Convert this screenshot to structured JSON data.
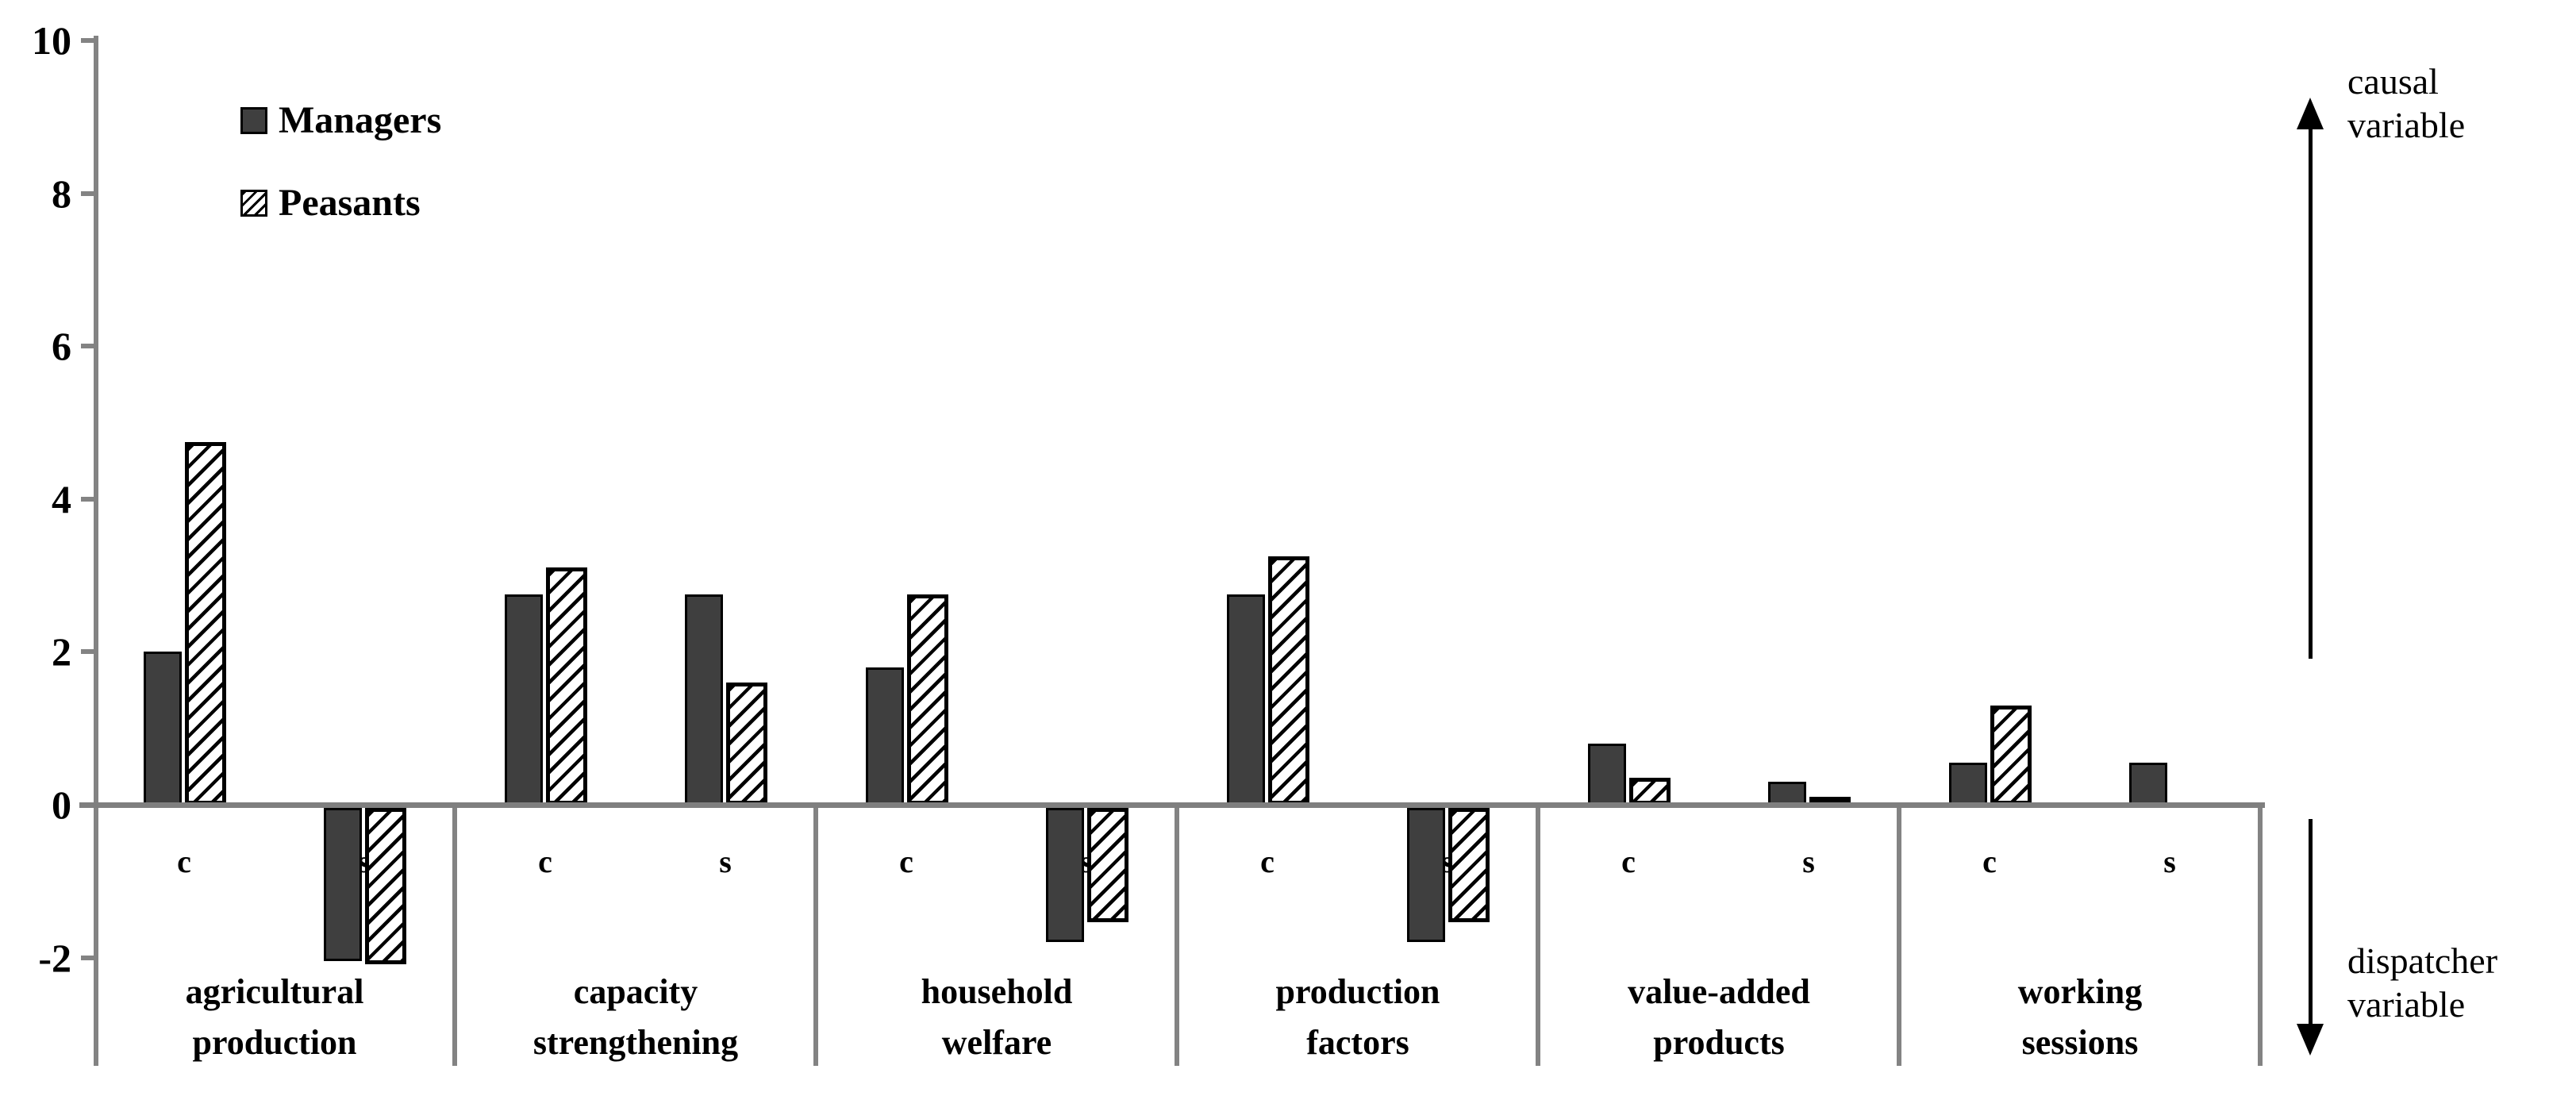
{
  "colors": {
    "managers_fill": "#3f3f3f",
    "peasants_fill": "#ffffff",
    "hatch_line": "#000000",
    "bar_border": "#000000",
    "axis_gray": "#808080",
    "text": "#000000"
  },
  "legend": {
    "items": [
      {
        "label": "Managers",
        "swatch": "solid-dark-square"
      },
      {
        "label": "Peasants",
        "swatch": "diagonal-hatch-square"
      }
    ]
  },
  "annotations": {
    "causal": {
      "lines": [
        "causal",
        "variable"
      ]
    },
    "dispatcher": {
      "lines": [
        "dispatcher",
        "variable"
      ]
    }
  },
  "chart_data": {
    "type": "bar",
    "title": "",
    "xlabel": "",
    "ylabel": "",
    "ylim": [
      -2.8,
      10
    ],
    "grid": false,
    "legend_position": "top-left",
    "series": [
      "Managers",
      "Peasants"
    ],
    "subcategory_labels": [
      "c",
      "s"
    ],
    "yticks": [
      {
        "label": "10",
        "value": 10
      },
      {
        "label": "8",
        "value": 8
      },
      {
        "label": "6",
        "value": 6
      },
      {
        "label": "4",
        "value": 4
      },
      {
        "label": "2",
        "value": 2
      },
      {
        "label": "0",
        "value": 0
      },
      {
        "label": "-2",
        "value": -2
      }
    ],
    "groups": [
      {
        "category": "agricultural production",
        "label_lines": [
          "agricultural",
          "production"
        ],
        "bars": [
          {
            "sub": "c",
            "managers": 2.0,
            "peasants": 4.75
          },
          {
            "sub": "s",
            "managers": -2.0,
            "peasants": -2.05
          }
        ]
      },
      {
        "category": "capacity strengthening",
        "label_lines": [
          "capacity",
          "strengthening"
        ],
        "bars": [
          {
            "sub": "c",
            "managers": 2.75,
            "peasants": 3.1
          },
          {
            "sub": "s",
            "managers": 2.75,
            "peasants": 1.6
          }
        ]
      },
      {
        "category": "household welfare",
        "label_lines": [
          "household",
          "welfare"
        ],
        "bars": [
          {
            "sub": "c",
            "managers": 1.8,
            "peasants": 2.75
          },
          {
            "sub": "s",
            "managers": -1.75,
            "peasants": -1.5
          }
        ]
      },
      {
        "category": "production factors",
        "label_lines": [
          "production",
          "factors"
        ],
        "bars": [
          {
            "sub": "c",
            "managers": 2.75,
            "peasants": 3.25
          },
          {
            "sub": "s",
            "managers": -1.75,
            "peasants": -1.5
          }
        ]
      },
      {
        "category": "value-added products",
        "label_lines": [
          "value-added",
          "products"
        ],
        "bars": [
          {
            "sub": "c",
            "managers": 0.8,
            "peasants": 0.35
          },
          {
            "sub": "s",
            "managers": 0.3,
            "peasants": 0.1
          }
        ]
      },
      {
        "category": "working sessions",
        "label_lines": [
          "working",
          "sessions"
        ],
        "bars": [
          {
            "sub": "c",
            "managers": 0.55,
            "peasants": 1.3
          },
          {
            "sub": "s",
            "managers": 0.55,
            "peasants": null
          }
        ]
      }
    ]
  }
}
